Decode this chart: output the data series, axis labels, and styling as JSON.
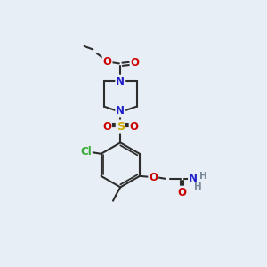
{
  "bg_color": "#e8eef5",
  "bond_color": "#2d2d2d",
  "N_color": "#2020cc",
  "O_color": "#cc0000",
  "S_color": "#ccaa00",
  "Cl_color": "#33aa33",
  "H_color": "#7a8a9a",
  "line_width": 1.5,
  "font_size": 8.5,
  "xlim": [
    0,
    10
  ],
  "ylim": [
    0,
    10
  ]
}
